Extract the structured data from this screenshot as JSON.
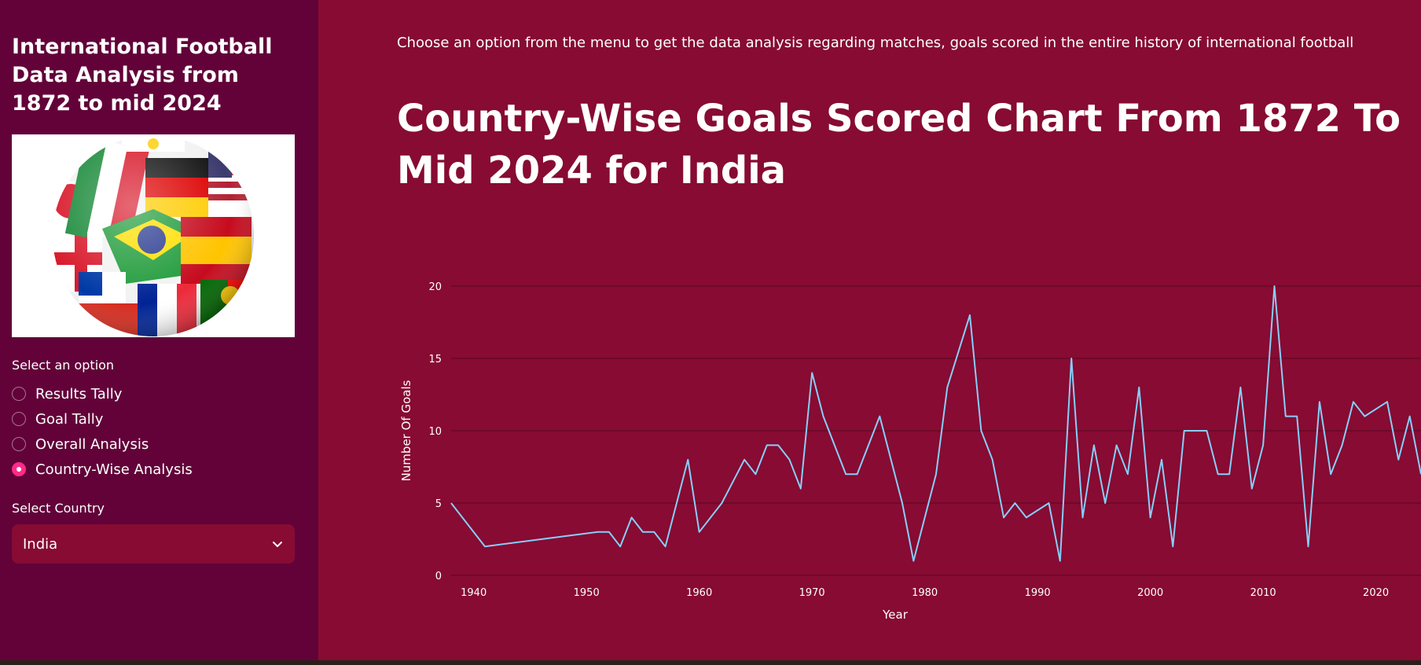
{
  "sidebar": {
    "title": "International Football Data Analysis from 1872 to mid 2024",
    "option_label": "Select an option",
    "options": [
      {
        "label": "Results Tally",
        "selected": false
      },
      {
        "label": "Goal Tally",
        "selected": false
      },
      {
        "label": "Overall Analysis",
        "selected": false
      },
      {
        "label": "Country-Wise Analysis",
        "selected": true
      }
    ],
    "country_label": "Select Country",
    "country_value": "India"
  },
  "main": {
    "description": "Choose an option from the menu to get the data analysis regarding matches, goals scored in the entire history of international football",
    "title": "Country-Wise Goals Scored Chart From 1872 To Mid 2024 for India"
  },
  "colors": {
    "sidebar_bg": "#620239",
    "main_bg": "#870b32",
    "accent": "#ff2b8a",
    "line": "#87cefa"
  },
  "chart_data": {
    "type": "line",
    "xlabel": "Year",
    "ylabel": "Number Of Goals",
    "xlim": [
      1938,
      2024
    ],
    "ylim": [
      0,
      20
    ],
    "x_ticks": [
      1940,
      1950,
      1960,
      1970,
      1980,
      1990,
      2000,
      2010,
      2020
    ],
    "y_ticks": [
      0,
      5,
      10,
      15,
      20
    ],
    "grid": "horizontal",
    "series": [
      {
        "x": [
          1938,
          1941,
          1951,
          1952,
          1953,
          1954,
          1955,
          1956,
          1957,
          1959,
          1960,
          1962,
          1964,
          1965,
          1966,
          1967,
          1968,
          1969,
          1970,
          1971,
          1973,
          1974,
          1976,
          1978,
          1979,
          1981,
          1982,
          1984,
          1985,
          1986,
          1987,
          1988,
          1989,
          1991,
          1992,
          1993,
          1994,
          1995,
          1996,
          1997,
          1998,
          1999,
          2000,
          2001,
          2002,
          2003,
          2004,
          2005,
          2006,
          2007,
          2008,
          2009,
          2010,
          2011,
          2012,
          2013,
          2014,
          2015,
          2016,
          2017,
          2018,
          2019,
          2021,
          2022,
          2023,
          2024
        ],
        "y": [
          5,
          2,
          3,
          3,
          2,
          4,
          3,
          3,
          2,
          8,
          3,
          5,
          8,
          7,
          9,
          9,
          8,
          6,
          14,
          11,
          7,
          7,
          11,
          5,
          1,
          7,
          13,
          18,
          10,
          8,
          4,
          5,
          4,
          5,
          1,
          15,
          4,
          9,
          5,
          9,
          7,
          13,
          4,
          8,
          2,
          10,
          10,
          10,
          7,
          7,
          13,
          6,
          9,
          20,
          11,
          11,
          2,
          12,
          7,
          9,
          12,
          11,
          12,
          8,
          11,
          7
        ]
      }
    ]
  }
}
